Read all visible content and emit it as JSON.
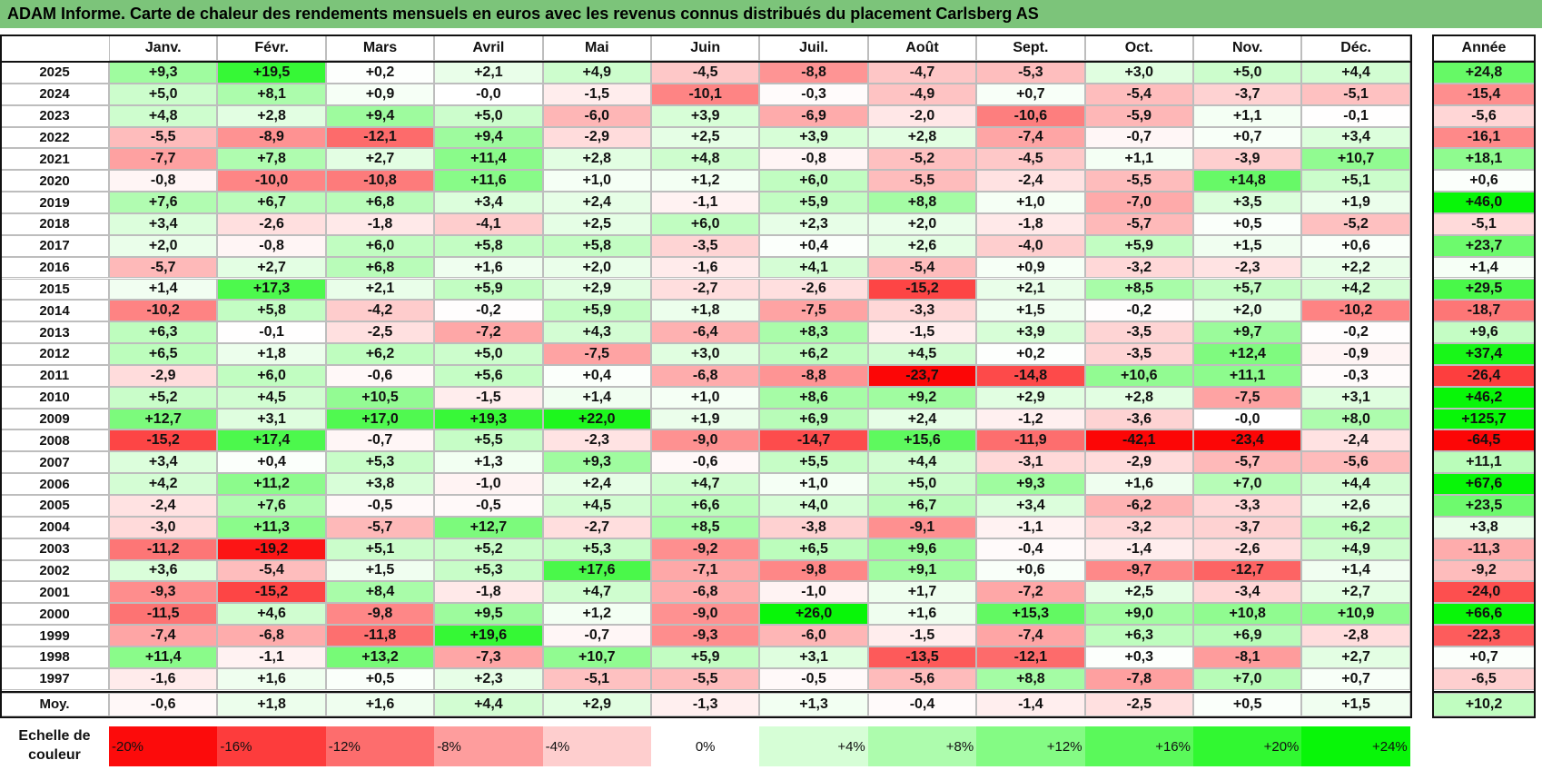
{
  "title": "ADAM Informe. Carte de chaleur des rendements mensuels en euros avec les revenus connus distribués du placement Carlsberg AS",
  "chart_data": {
    "type": "heatmap",
    "title": "ADAM Informe. Carte de chaleur des rendements mensuels en euros avec les revenus connus distribués du placement Carlsberg AS",
    "columns": [
      "Janv.",
      "Févr.",
      "Mars",
      "Avril",
      "Mai",
      "Juin",
      "Juil.",
      "Août",
      "Sept.",
      "Oct.",
      "Nov.",
      "Déc."
    ],
    "year_column_label": "Année",
    "average_row_label": "Moy.",
    "rows": [
      {
        "year": "2025",
        "values": [
          "+9,3",
          "+19,5",
          "+0,2",
          "+2,1",
          "+4,9",
          "-4,5",
          "-8,8",
          "-4,7",
          "-5,3",
          "+3,0",
          "+5,0",
          "+4,4"
        ],
        "annual": "+24,8"
      },
      {
        "year": "2024",
        "values": [
          "+5,0",
          "+8,1",
          "+0,9",
          "-0,0",
          "-1,5",
          "-10,1",
          "-0,3",
          "-4,9",
          "+0,7",
          "-5,4",
          "-3,7",
          "-5,1"
        ],
        "annual": "-15,4"
      },
      {
        "year": "2023",
        "values": [
          "+4,8",
          "+2,8",
          "+9,4",
          "+5,0",
          "-6,0",
          "+3,9",
          "-6,9",
          "-2,0",
          "-10,6",
          "-5,9",
          "+1,1",
          "-0,1"
        ],
        "annual": "-5,6"
      },
      {
        "year": "2022",
        "values": [
          "-5,5",
          "-8,9",
          "-12,1",
          "+9,4",
          "-2,9",
          "+2,5",
          "+3,9",
          "+2,8",
          "-7,4",
          "-0,7",
          "+0,7",
          "+3,4"
        ],
        "annual": "-16,1"
      },
      {
        "year": "2021",
        "values": [
          "-7,7",
          "+7,8",
          "+2,7",
          "+11,4",
          "+2,8",
          "+4,8",
          "-0,8",
          "-5,2",
          "-4,5",
          "+1,1",
          "-3,9",
          "+10,7"
        ],
        "annual": "+18,1"
      },
      {
        "year": "2020",
        "values": [
          "-0,8",
          "-10,0",
          "-10,8",
          "+11,6",
          "+1,0",
          "+1,2",
          "+6,0",
          "-5,5",
          "-2,4",
          "-5,5",
          "+14,8",
          "+5,1"
        ],
        "annual": "+0,6"
      },
      {
        "year": "2019",
        "values": [
          "+7,6",
          "+6,7",
          "+6,8",
          "+3,4",
          "+2,4",
          "-1,1",
          "+5,9",
          "+8,8",
          "+1,0",
          "-7,0",
          "+3,5",
          "+1,9"
        ],
        "annual": "+46,0"
      },
      {
        "year": "2018",
        "values": [
          "+3,4",
          "-2,6",
          "-1,8",
          "-4,1",
          "+2,5",
          "+6,0",
          "+2,3",
          "+2,0",
          "-1,8",
          "-5,7",
          "+0,5",
          "-5,2"
        ],
        "annual": "-5,1"
      },
      {
        "year": "2017",
        "values": [
          "+2,0",
          "-0,8",
          "+6,0",
          "+5,8",
          "+5,8",
          "-3,5",
          "+0,4",
          "+2,6",
          "-4,0",
          "+5,9",
          "+1,5",
          "+0,6"
        ],
        "annual": "+23,7"
      },
      {
        "year": "2016",
        "values": [
          "-5,7",
          "+2,7",
          "+6,8",
          "+1,6",
          "+2,0",
          "-1,6",
          "+4,1",
          "-5,4",
          "+0,9",
          "-3,2",
          "-2,3",
          "+2,2"
        ],
        "annual": "+1,4"
      },
      {
        "year": "2015",
        "values": [
          "+1,4",
          "+17,3",
          "+2,1",
          "+5,9",
          "+2,9",
          "-2,7",
          "-2,6",
          "-15,2",
          "+2,1",
          "+8,5",
          "+5,7",
          "+4,2"
        ],
        "annual": "+29,5"
      },
      {
        "year": "2014",
        "values": [
          "-10,2",
          "+5,8",
          "-4,2",
          "-0,2",
          "+5,9",
          "+1,8",
          "-7,5",
          "-3,3",
          "+1,5",
          "-0,2",
          "+2,0",
          "-10,2"
        ],
        "annual": "-18,7"
      },
      {
        "year": "2013",
        "values": [
          "+6,3",
          "-0,1",
          "-2,5",
          "-7,2",
          "+4,3",
          "-6,4",
          "+8,3",
          "-1,5",
          "+3,9",
          "-3,5",
          "+9,7",
          "-0,2"
        ],
        "annual": "+9,6"
      },
      {
        "year": "2012",
        "values": [
          "+6,5",
          "+1,8",
          "+6,2",
          "+5,0",
          "-7,5",
          "+3,0",
          "+6,2",
          "+4,5",
          "+0,2",
          "-3,5",
          "+12,4",
          "-0,9"
        ],
        "annual": "+37,4"
      },
      {
        "year": "2011",
        "values": [
          "-2,9",
          "+6,0",
          "-0,6",
          "+5,6",
          "+0,4",
          "-6,8",
          "-8,8",
          "-23,7",
          "-14,8",
          "+10,6",
          "+11,1",
          "-0,3"
        ],
        "annual": "-26,4"
      },
      {
        "year": "2010",
        "values": [
          "+5,2",
          "+4,5",
          "+10,5",
          "-1,5",
          "+1,4",
          "+1,0",
          "+8,6",
          "+9,2",
          "+2,9",
          "+2,8",
          "-7,5",
          "+3,1"
        ],
        "annual": "+46,2"
      },
      {
        "year": "2009",
        "values": [
          "+12,7",
          "+3,1",
          "+17,0",
          "+19,3",
          "+22,0",
          "+1,9",
          "+6,9",
          "+2,4",
          "-1,2",
          "-3,6",
          "-0,0",
          "+8,0"
        ],
        "annual": "+125,7"
      },
      {
        "year": "2008",
        "values": [
          "-15,2",
          "+17,4",
          "-0,7",
          "+5,5",
          "-2,3",
          "-9,0",
          "-14,7",
          "+15,6",
          "-11,9",
          "-42,1",
          "-23,4",
          "-2,4"
        ],
        "annual": "-64,5"
      },
      {
        "year": "2007",
        "values": [
          "+3,4",
          "+0,4",
          "+5,3",
          "+1,3",
          "+9,3",
          "-0,6",
          "+5,5",
          "+4,4",
          "-3,1",
          "-2,9",
          "-5,7",
          "-5,6"
        ],
        "annual": "+11,1"
      },
      {
        "year": "2006",
        "values": [
          "+4,2",
          "+11,2",
          "+3,8",
          "-1,0",
          "+2,4",
          "+4,7",
          "+1,0",
          "+5,0",
          "+9,3",
          "+1,6",
          "+7,0",
          "+4,4"
        ],
        "annual": "+67,6"
      },
      {
        "year": "2005",
        "values": [
          "-2,4",
          "+7,6",
          "-0,5",
          "-0,5",
          "+4,5",
          "+6,6",
          "+4,0",
          "+6,7",
          "+3,4",
          "-6,2",
          "-3,3",
          "+2,6"
        ],
        "annual": "+23,5"
      },
      {
        "year": "2004",
        "values": [
          "-3,0",
          "+11,3",
          "-5,7",
          "+12,7",
          "-2,7",
          "+8,5",
          "-3,8",
          "-9,1",
          "-1,1",
          "-3,2",
          "-3,7",
          "+6,2"
        ],
        "annual": "+3,8"
      },
      {
        "year": "2003",
        "values": [
          "-11,2",
          "-19,2",
          "+5,1",
          "+5,2",
          "+5,3",
          "-9,2",
          "+6,5",
          "+9,6",
          "-0,4",
          "-1,4",
          "-2,6",
          "+4,9"
        ],
        "annual": "-11,3"
      },
      {
        "year": "2002",
        "values": [
          "+3,6",
          "-5,4",
          "+1,5",
          "+5,3",
          "+17,6",
          "-7,1",
          "-9,8",
          "+9,1",
          "+0,6",
          "-9,7",
          "-12,7",
          "+1,4"
        ],
        "annual": "-9,2"
      },
      {
        "year": "2001",
        "values": [
          "-9,3",
          "-15,2",
          "+8,4",
          "-1,8",
          "+4,7",
          "-6,8",
          "-1,0",
          "+1,7",
          "-7,2",
          "+2,5",
          "-3,4",
          "+2,7"
        ],
        "annual": "-24,0"
      },
      {
        "year": "2000",
        "values": [
          "-11,5",
          "+4,6",
          "-9,8",
          "+9,5",
          "+1,2",
          "-9,0",
          "+26,0",
          "+1,6",
          "+15,3",
          "+9,0",
          "+10,8",
          "+10,9"
        ],
        "annual": "+66,6"
      },
      {
        "year": "1999",
        "values": [
          "-7,4",
          "-6,8",
          "-11,8",
          "+19,6",
          "-0,7",
          "-9,3",
          "-6,0",
          "-1,5",
          "-7,4",
          "+6,3",
          "+6,9",
          "-2,8"
        ],
        "annual": "-22,3"
      },
      {
        "year": "1998",
        "values": [
          "+11,4",
          "-1,1",
          "+13,2",
          "-7,3",
          "+10,7",
          "+5,9",
          "+3,1",
          "-13,5",
          "-12,1",
          "+0,3",
          "-8,1",
          "+2,7"
        ],
        "annual": "+0,7"
      },
      {
        "year": "1997",
        "values": [
          "-1,6",
          "+1,6",
          "+0,5",
          "+2,3",
          "-5,1",
          "-5,5",
          "-0,5",
          "-5,6",
          "+8,8",
          "-7,8",
          "+7,0",
          "+0,7"
        ],
        "annual": "-6,5"
      }
    ],
    "averages": [
      "-0,6",
      "+1,8",
      "+1,6",
      "+4,4",
      "+2,9",
      "-1,3",
      "+1,3",
      "-0,4",
      "-1,4",
      "-2,5",
      "+0,5",
      "+1,5"
    ],
    "average_annual": "+10,2",
    "scale_label": "Echelle de couleur",
    "scale": [
      "-20%",
      "-16%",
      "-12%",
      "-8%",
      "-4%",
      "0%",
      "+4%",
      "+8%",
      "+12%",
      "+16%",
      "+20%",
      "+24%"
    ]
  }
}
